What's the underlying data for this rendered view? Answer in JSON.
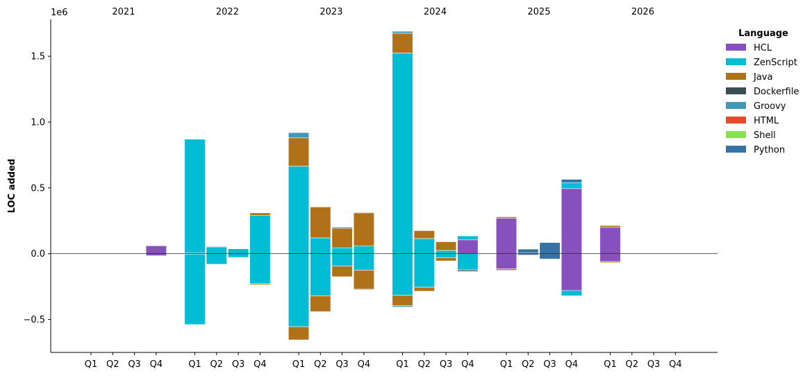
{
  "chart_data": {
    "type": "bar",
    "stacked": true,
    "diverging": true,
    "ylabel": "LOC added",
    "y_scale_label": "1e6",
    "ylim": [
      -750000,
      1780000
    ],
    "yticks": [
      -500000,
      0,
      500000,
      1000000,
      1500000
    ],
    "ytick_labels": [
      "−0.5",
      "0.0",
      "0.5",
      "1.0",
      "1.5"
    ],
    "years": [
      "2021",
      "2022",
      "2023",
      "2024",
      "2025",
      "2026"
    ],
    "quarters": [
      "Q1",
      "Q2",
      "Q3",
      "Q4"
    ],
    "legend": {
      "title": "Language",
      "position": "top-right"
    },
    "languages": [
      {
        "name": "HCL",
        "color": "#8650be"
      },
      {
        "name": "ZenScript",
        "color": "#00bcd4"
      },
      {
        "name": "Java",
        "color": "#b07219"
      },
      {
        "name": "Dockerfile",
        "color": "#384d54"
      },
      {
        "name": "Groovy",
        "color": "#4298b8"
      },
      {
        "name": "HTML",
        "color": "#e34c26"
      },
      {
        "name": "Shell",
        "color": "#89e051"
      },
      {
        "name": "Python",
        "color": "#3572a5"
      }
    ],
    "bars": [
      {
        "year": "2021",
        "quarter": "Q4",
        "added": {
          "HCL": 60000
        },
        "removed": {
          "HCL": 15000
        }
      },
      {
        "year": "2022",
        "quarter": "Q1",
        "added": {
          "HCL": 5000,
          "ZenScript": 865000
        },
        "removed": {
          "HCL": 3000,
          "ZenScript": 535000
        }
      },
      {
        "year": "2022",
        "quarter": "Q2",
        "added": {
          "ZenScript": 52000,
          "Dockerfile": 3000
        },
        "removed": {
          "ZenScript": 80000
        }
      },
      {
        "year": "2022",
        "quarter": "Q3",
        "added": {
          "ZenScript": 37000
        },
        "removed": {
          "ZenScript": 28000
        }
      },
      {
        "year": "2022",
        "quarter": "Q4",
        "added": {
          "ZenScript": 290000,
          "Java": 20000
        },
        "removed": {
          "ZenScript": 225000,
          "Java": 10000
        }
      },
      {
        "year": "2023",
        "quarter": "Q1",
        "added": {
          "ZenScript": 665000,
          "Java": 215000,
          "Groovy": 40000
        },
        "removed": {
          "ZenScript": 555000,
          "Java": 100000
        }
      },
      {
        "year": "2023",
        "quarter": "Q2",
        "added": {
          "ZenScript": 120000,
          "Java": 235000
        },
        "removed": {
          "ZenScript": 320000,
          "Java": 120000
        }
      },
      {
        "year": "2023",
        "quarter": "Q3",
        "added": {
          "ZenScript": 45000,
          "Java": 145000,
          "Dockerfile": 10000,
          "Groovy": 3000
        },
        "removed": {
          "ZenScript": 95000,
          "Java": 80000
        }
      },
      {
        "year": "2023",
        "quarter": "Q4",
        "added": {
          "ZenScript": 58000,
          "Java": 253000,
          "Dockerfile": 3000
        },
        "removed": {
          "ZenScript": 125000,
          "Java": 145000,
          "Dockerfile": 3000
        }
      },
      {
        "year": "2024",
        "quarter": "Q1",
        "added": {
          "ZenScript": 1525000,
          "Java": 150000,
          "Groovy": 15000
        },
        "removed": {
          "ZenScript": 315000,
          "Java": 80000,
          "Groovy": 10000
        }
      },
      {
        "year": "2024",
        "quarter": "Q2",
        "added": {
          "ZenScript": 115000,
          "Java": 60000,
          "Dockerfile": 3000
        },
        "removed": {
          "ZenScript": 255000,
          "Java": 30000
        }
      },
      {
        "year": "2024",
        "quarter": "Q3",
        "added": {
          "ZenScript": 25000,
          "Java": 65000,
          "Shell": 5000
        },
        "removed": {
          "ZenScript": 30000,
          "Java": 25000
        }
      },
      {
        "year": "2024",
        "quarter": "Q4",
        "added": {
          "HCL": 105000,
          "ZenScript": 30000
        },
        "removed": {
          "ZenScript": 120000,
          "Dockerfile": 10000,
          "Groovy": 8000
        }
      },
      {
        "year": "2025",
        "quarter": "Q1",
        "added": {
          "HCL": 270000,
          "Java": 10000,
          "Shell": 5000
        },
        "removed": {
          "HCL": 115000,
          "Groovy": 5000,
          "Java": 10000
        }
      },
      {
        "year": "2025",
        "quarter": "Q2",
        "added": {
          "Dockerfile": 5000,
          "Python": 30000
        },
        "removed": {
          "Python": 10000
        }
      },
      {
        "year": "2025",
        "quarter": "Q3",
        "added": {
          "Python": 85000
        },
        "removed": {
          "Python": 40000
        }
      },
      {
        "year": "2025",
        "quarter": "Q4",
        "added": {
          "HCL": 495000,
          "ZenScript": 45000,
          "Python": 25000
        },
        "removed": {
          "HCL": 280000,
          "ZenScript": 40000
        }
      },
      {
        "year": "2026",
        "quarter": "Q1",
        "added": {
          "HCL": 200000,
          "Java": 15000,
          "Shell": 3000
        },
        "removed": {
          "HCL": 60000,
          "Java": 8000
        }
      }
    ]
  }
}
